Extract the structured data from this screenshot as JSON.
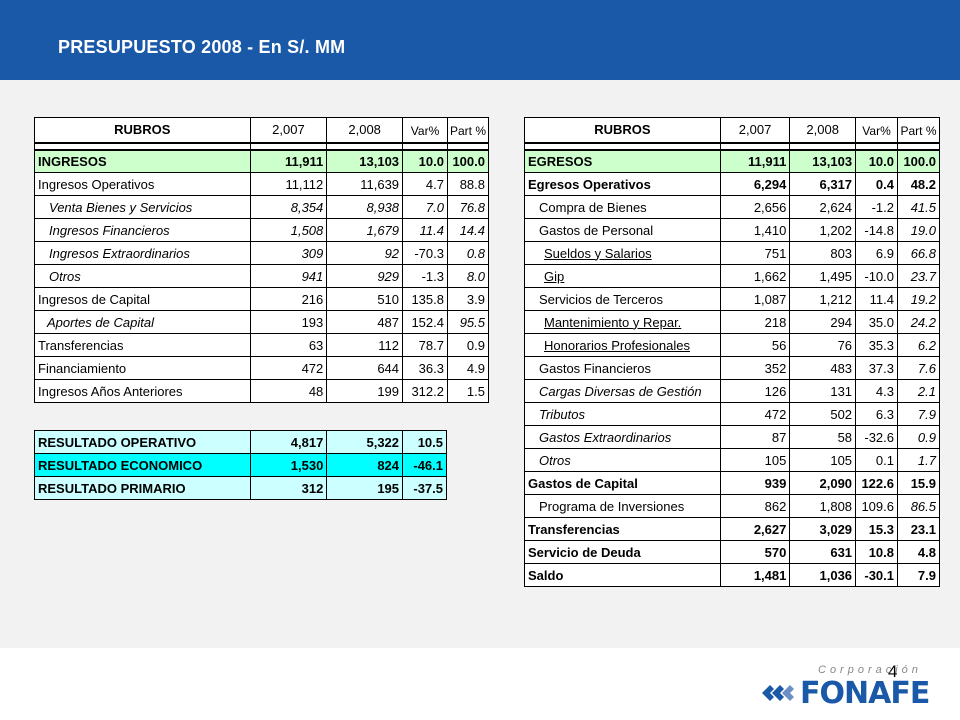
{
  "header": {
    "title": "PRESUPUESTO 2008 - En S/. MM"
  },
  "columns": {
    "rubros": "RUBROS",
    "y1": "2,007",
    "y2": "2,008",
    "var": "Var%",
    "part": "Part %"
  },
  "ingresos": [
    {
      "label": "INGRESOS",
      "v1": "11,911",
      "v2": "13,103",
      "var": "10.0",
      "part": "100.0"
    },
    {
      "label": "Ingresos Operativos",
      "v1": "11,112",
      "v2": "11,639",
      "var": "4.7",
      "part": "88.8"
    },
    {
      "label": "Venta Bienes y Servicios",
      "v1": "8,354",
      "v2": "8,938",
      "var": "7.0",
      "part": "76.8"
    },
    {
      "label": "Ingresos Financieros",
      "v1": "1,508",
      "v2": "1,679",
      "var": "11.4",
      "part": "14.4"
    },
    {
      "label": "Ingresos Extraordinarios",
      "v1": "309",
      "v2": "92",
      "var": "-70.3",
      "part": "0.8"
    },
    {
      "label": "Otros",
      "v1": "941",
      "v2": "929",
      "var": "-1.3",
      "part": "8.0"
    },
    {
      "label": "Ingresos de Capital",
      "v1": "216",
      "v2": "510",
      "var": "135.8",
      "part": "3.9"
    },
    {
      "label": "Aportes de Capital",
      "v1": "193",
      "v2": "487",
      "var": "152.4",
      "part": "95.5"
    },
    {
      "label": "Transferencias",
      "v1": "63",
      "v2": "112",
      "var": "78.7",
      "part": "0.9"
    },
    {
      "label": "Financiamiento",
      "v1": "472",
      "v2": "644",
      "var": "36.3",
      "part": "4.9"
    },
    {
      "label": "Ingresos Años Anteriores",
      "v1": "48",
      "v2": "199",
      "var": "312.2",
      "part": "1.5"
    }
  ],
  "resultados": [
    {
      "label": "RESULTADO OPERATIVO",
      "v1": "4,817",
      "v2": "5,322",
      "var": "10.5"
    },
    {
      "label": "RESULTADO ECONOMICO",
      "v1": "1,530",
      "v2": "824",
      "var": "-46.1"
    },
    {
      "label": "RESULTADO PRIMARIO",
      "v1": "312",
      "v2": "195",
      "var": "-37.5"
    }
  ],
  "egresos": [
    {
      "label": "EGRESOS",
      "v1": "11,911",
      "v2": "13,103",
      "var": "10.0",
      "part": "100.0"
    },
    {
      "label": "Egresos Operativos",
      "v1": "6,294",
      "v2": "6,317",
      "var": "0.4",
      "part": "48.2"
    },
    {
      "label": "Compra de Bienes",
      "v1": "2,656",
      "v2": "2,624",
      "var": "-1.2",
      "part": "41.5"
    },
    {
      "label": "Gastos de Personal",
      "v1": "1,410",
      "v2": "1,202",
      "var": "-14.8",
      "part": "19.0"
    },
    {
      "label": "Sueldos y Salarios",
      "v1": "751",
      "v2": "803",
      "var": "6.9",
      "part": "66.8"
    },
    {
      "label": "Gip",
      "v1": "1,662",
      "v2": "1,495",
      "var": "-10.0",
      "part": "23.7"
    },
    {
      "label": "Servicios de Terceros",
      "v1": "1,087",
      "v2": "1,212",
      "var": "11.4",
      "part": "19.2"
    },
    {
      "label": "Mantenimiento y Repar.",
      "v1": "218",
      "v2": "294",
      "var": "35.0",
      "part": "24.2"
    },
    {
      "label": "Honorarios Profesionales",
      "v1": "56",
      "v2": "76",
      "var": "35.3",
      "part": "6.2"
    },
    {
      "label": "Gastos Financieros",
      "v1": "352",
      "v2": "483",
      "var": "37.3",
      "part": "7.6"
    },
    {
      "label": "Cargas Diversas de Gestión",
      "v1": "126",
      "v2": "131",
      "var": "4.3",
      "part": "2.1"
    },
    {
      "label": "Tributos",
      "v1": "472",
      "v2": "502",
      "var": "6.3",
      "part": "7.9"
    },
    {
      "label": "Gastos Extraordinarios",
      "v1": "87",
      "v2": "58",
      "var": "-32.6",
      "part": "0.9"
    },
    {
      "label": "Otros",
      "v1": "105",
      "v2": "105",
      "var": "0.1",
      "part": "1.7"
    },
    {
      "label": "Gastos de Capital",
      "v1": "939",
      "v2": "2,090",
      "var": "122.6",
      "part": "15.9"
    },
    {
      "label": "Programa de Inversiones",
      "v1": "862",
      "v2": "1,808",
      "var": "109.6",
      "part": "86.5"
    },
    {
      "label": "Transferencias",
      "v1": "2,627",
      "v2": "3,029",
      "var": "15.3",
      "part": "23.1"
    },
    {
      "label": "Servicio de Deuda",
      "v1": "570",
      "v2": "631",
      "var": "10.8",
      "part": "4.8"
    },
    {
      "label": "Saldo",
      "v1": "1,481",
      "v2": "1,036",
      "var": "-30.1",
      "part": "7.9"
    }
  ],
  "footer": {
    "page_number": "4",
    "logo_corp": "Corporación",
    "logo_brand": "FONAFE"
  },
  "colors": {
    "header_bg": "#1a58a8",
    "total_row": "#ccffcc",
    "result_row": "#ccffff",
    "result_highlight": "#00ffff"
  }
}
